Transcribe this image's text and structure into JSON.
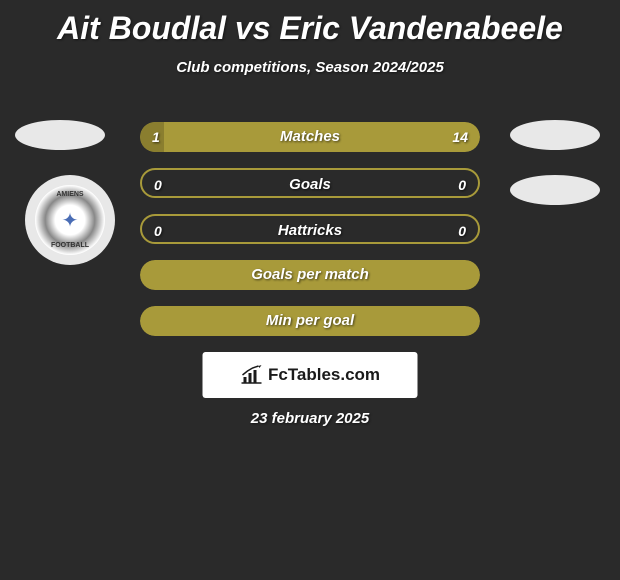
{
  "title": "Ait Boudlal vs Eric Vandenabeele",
  "subtitle": "Club competitions, Season 2024/2025",
  "date": "23 february 2025",
  "logo": {
    "brand": "FcTables.com"
  },
  "club_badge": {
    "top_text": "AMIENS",
    "bottom_text": "FOOTBALL"
  },
  "colors": {
    "background": "#2a2a2a",
    "bar_fill": "#a89a3a",
    "bar_empty": "#3d3d3d",
    "text": "#ffffff",
    "avatar_bg": "#e8e8e8",
    "logo_bg": "#ffffff",
    "logo_text": "#1a1a1a"
  },
  "stats": [
    {
      "label": "Matches",
      "left_value": "1",
      "right_value": "14",
      "left_pct": 7,
      "right_pct": 93,
      "style": "split"
    },
    {
      "label": "Goals",
      "left_value": "0",
      "right_value": "0",
      "left_pct": 0,
      "right_pct": 0,
      "style": "empty-border"
    },
    {
      "label": "Hattricks",
      "left_value": "0",
      "right_value": "0",
      "left_pct": 0,
      "right_pct": 0,
      "style": "empty-border"
    },
    {
      "label": "Goals per match",
      "left_value": "",
      "right_value": "",
      "left_pct": 100,
      "right_pct": 0,
      "style": "full"
    },
    {
      "label": "Min per goal",
      "left_value": "",
      "right_value": "",
      "left_pct": 100,
      "right_pct": 0,
      "style": "full"
    }
  ]
}
